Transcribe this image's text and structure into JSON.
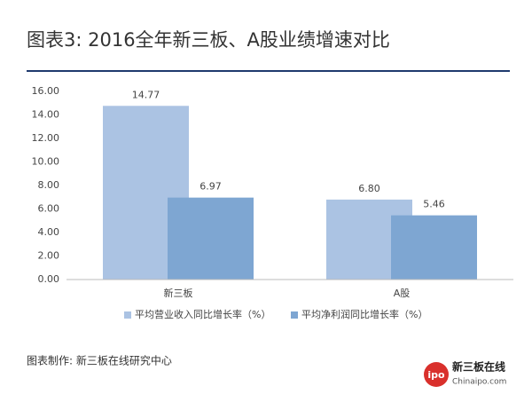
{
  "chart_data": {
    "type": "bar",
    "title": "图表3: 2016全年新三板、A股业绩增速对比",
    "categories": [
      "新三板",
      "A股"
    ],
    "series": [
      {
        "name": "平均营业收入同比增长率（%）",
        "color": "#abc3e3",
        "values": [
          14.77,
          6.8
        ],
        "value_labels": [
          "14.77",
          "6.80"
        ]
      },
      {
        "name": "平均净利润同比增长率（%）",
        "color": "#7ea6d2",
        "values": [
          6.97,
          5.46
        ],
        "value_labels": [
          "6.97",
          "5.46"
        ]
      }
    ],
    "ylim": [
      0,
      16
    ],
    "yticks": [
      {
        "value": 0,
        "label": "0.00"
      },
      {
        "value": 2,
        "label": "2.00"
      },
      {
        "value": 4,
        "label": "4.00"
      },
      {
        "value": 6,
        "label": "6.00"
      },
      {
        "value": 8,
        "label": "8.00"
      },
      {
        "value": 10,
        "label": "10.00"
      },
      {
        "value": 12,
        "label": "12.00"
      },
      {
        "value": 14,
        "label": "14.00"
      },
      {
        "value": 16,
        "label": "16.00"
      }
    ],
    "grid": false,
    "legend": "bottom",
    "source": "图表制作: 新三板在线研究中心",
    "logo": {
      "badge": "ipo",
      "name": "新三板在线",
      "site": "Chinaipo.com"
    }
  }
}
